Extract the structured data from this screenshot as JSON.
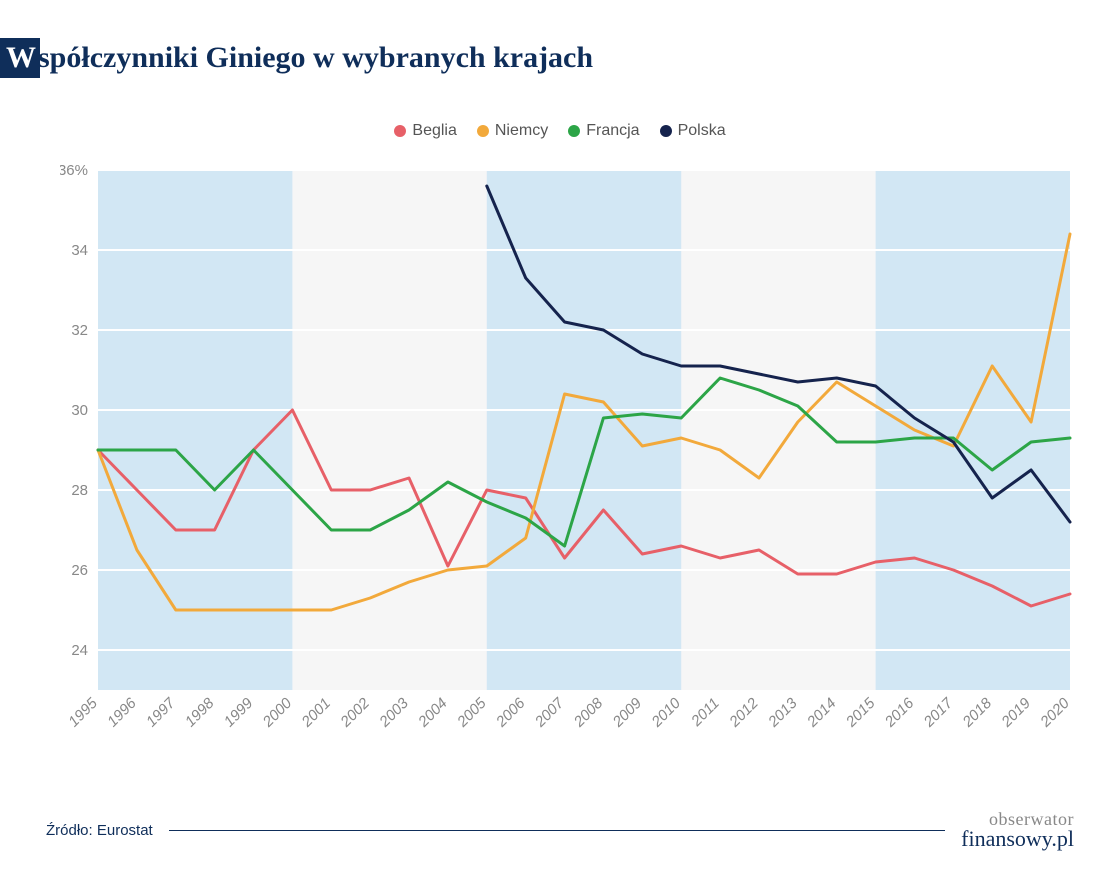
{
  "title": "Współczynniki Giniego w wybranych krajach",
  "source": "Źródło: Eurostat",
  "logo": {
    "top": "obserwator",
    "bottom": "finansowy.pl"
  },
  "chart": {
    "type": "line",
    "y_axis": {
      "min": 23,
      "max": 36,
      "ticks": [
        24,
        26,
        28,
        30,
        32,
        34,
        36
      ],
      "suffix_on_top": "%",
      "label_fontsize": 15,
      "label_color": "#888888"
    },
    "x_axis": {
      "categories": [
        "1995",
        "1996",
        "1997",
        "1998",
        "1999",
        "2000",
        "2001",
        "2002",
        "2003",
        "2004",
        "2005",
        "2006",
        "2007",
        "2008",
        "2009",
        "2010",
        "2011",
        "2012",
        "2013",
        "2014",
        "2015",
        "2016",
        "2017",
        "2018",
        "2019",
        "2020"
      ],
      "label_fontsize": 15,
      "label_color": "#888888",
      "label_rotation": -45
    },
    "background_color": "#f6f6f6",
    "band_color": "#d2e7f4",
    "bands": [
      [
        0,
        5
      ],
      [
        10,
        15
      ],
      [
        20,
        25
      ]
    ],
    "gridline_color": "#ffffff",
    "line_width": 3,
    "series": [
      {
        "name": "Beglia",
        "color": "#e76068",
        "data": [
          29.0,
          28.0,
          27.0,
          27.0,
          29.0,
          30.0,
          28.0,
          28.0,
          28.3,
          26.1,
          28.0,
          27.8,
          26.3,
          27.5,
          26.4,
          26.6,
          26.3,
          26.5,
          25.9,
          25.9,
          26.2,
          26.3,
          26.0,
          25.6,
          25.1,
          25.4
        ]
      },
      {
        "name": "Niemcy",
        "color": "#f2a93b",
        "data": [
          29.0,
          26.5,
          25.0,
          25.0,
          25.0,
          25.0,
          25.0,
          25.3,
          25.7,
          26.0,
          26.1,
          26.8,
          30.4,
          30.2,
          29.1,
          29.3,
          29.0,
          28.3,
          29.7,
          30.7,
          30.1,
          29.5,
          29.1,
          31.1,
          29.7,
          34.4
        ]
      },
      {
        "name": "Francja",
        "color": "#2ca547",
        "data": [
          29.0,
          29.0,
          29.0,
          28.0,
          29.0,
          28.0,
          27.0,
          27.0,
          27.5,
          28.2,
          27.7,
          27.3,
          26.6,
          29.8,
          29.9,
          29.8,
          30.8,
          30.5,
          30.1,
          29.2,
          29.2,
          29.3,
          29.3,
          28.5,
          29.2,
          29.3
        ]
      },
      {
        "name": "Polska",
        "color": "#15234d",
        "data": [
          null,
          null,
          null,
          null,
          null,
          null,
          null,
          null,
          null,
          null,
          35.6,
          33.3,
          32.2,
          32.0,
          31.4,
          31.1,
          31.1,
          30.9,
          30.7,
          30.8,
          30.6,
          29.8,
          29.2,
          27.8,
          28.5,
          27.2
        ]
      }
    ]
  }
}
